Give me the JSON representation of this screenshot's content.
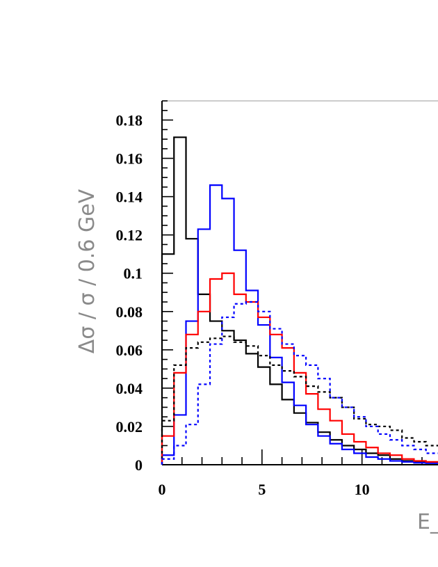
{
  "chart_data": {
    "type": "histogram-step",
    "title": "",
    "xlabel": "E_T",
    "ylabel": "Δσ / σ / 0.6 GeV",
    "xlim": [
      0,
      13.8
    ],
    "ylim": [
      0,
      0.19
    ],
    "bin_width": 0.6,
    "x_ticks": [
      0,
      5,
      10
    ],
    "x_tick_labels": [
      "0",
      "5",
      "10"
    ],
    "y_ticks": [
      0,
      0.02,
      0.04,
      0.06,
      0.08,
      0.1,
      0.12,
      0.14,
      0.16,
      0.18
    ],
    "y_tick_labels": [
      "0",
      "0.02",
      "0.04",
      "0.06",
      "0.08",
      "0.1",
      "0.12",
      "0.14",
      "0.16",
      "0.18"
    ],
    "series": [
      {
        "color": "#000000",
        "dash": "solid",
        "values": [
          0.11,
          0.171,
          0.118,
          0.089,
          0.075,
          0.07,
          0.065,
          0.058,
          0.051,
          0.042,
          0.034,
          0.027,
          0.022,
          0.017,
          0.013,
          0.01,
          0.008,
          0.006,
          0.005,
          0.003,
          0.002,
          0.0015,
          0.001
        ]
      },
      {
        "color": "#0000ff",
        "dash": "solid",
        "values": [
          0.005,
          0.026,
          0.075,
          0.123,
          0.146,
          0.139,
          0.112,
          0.091,
          0.073,
          0.056,
          0.043,
          0.031,
          0.021,
          0.015,
          0.011,
          0.008,
          0.006,
          0.004,
          0.003,
          0.002,
          0.0015,
          0.001,
          0.0008
        ]
      },
      {
        "color": "#ff0000",
        "dash": "solid",
        "values": [
          0.015,
          0.048,
          0.068,
          0.08,
          0.097,
          0.1,
          0.089,
          0.085,
          0.077,
          0.068,
          0.061,
          0.048,
          0.037,
          0.029,
          0.023,
          0.016,
          0.012,
          0.009,
          0.006,
          0.005,
          0.003,
          0.002,
          0.0015
        ]
      },
      {
        "color": "#000000",
        "dash": "dotted",
        "values": [
          0.023,
          0.052,
          0.061,
          0.064,
          0.066,
          0.067,
          0.064,
          0.062,
          0.057,
          0.052,
          0.049,
          0.046,
          0.041,
          0.038,
          0.035,
          0.03,
          0.024,
          0.021,
          0.02,
          0.018,
          0.014,
          0.012,
          0.01
        ]
      },
      {
        "color": "#0000ff",
        "dash": "dotted",
        "values": [
          0.003,
          0.01,
          0.021,
          0.042,
          0.063,
          0.077,
          0.084,
          0.085,
          0.08,
          0.071,
          0.063,
          0.057,
          0.052,
          0.045,
          0.035,
          0.03,
          0.025,
          0.02,
          0.016,
          0.013,
          0.01,
          0.008,
          0.006
        ]
      }
    ]
  }
}
